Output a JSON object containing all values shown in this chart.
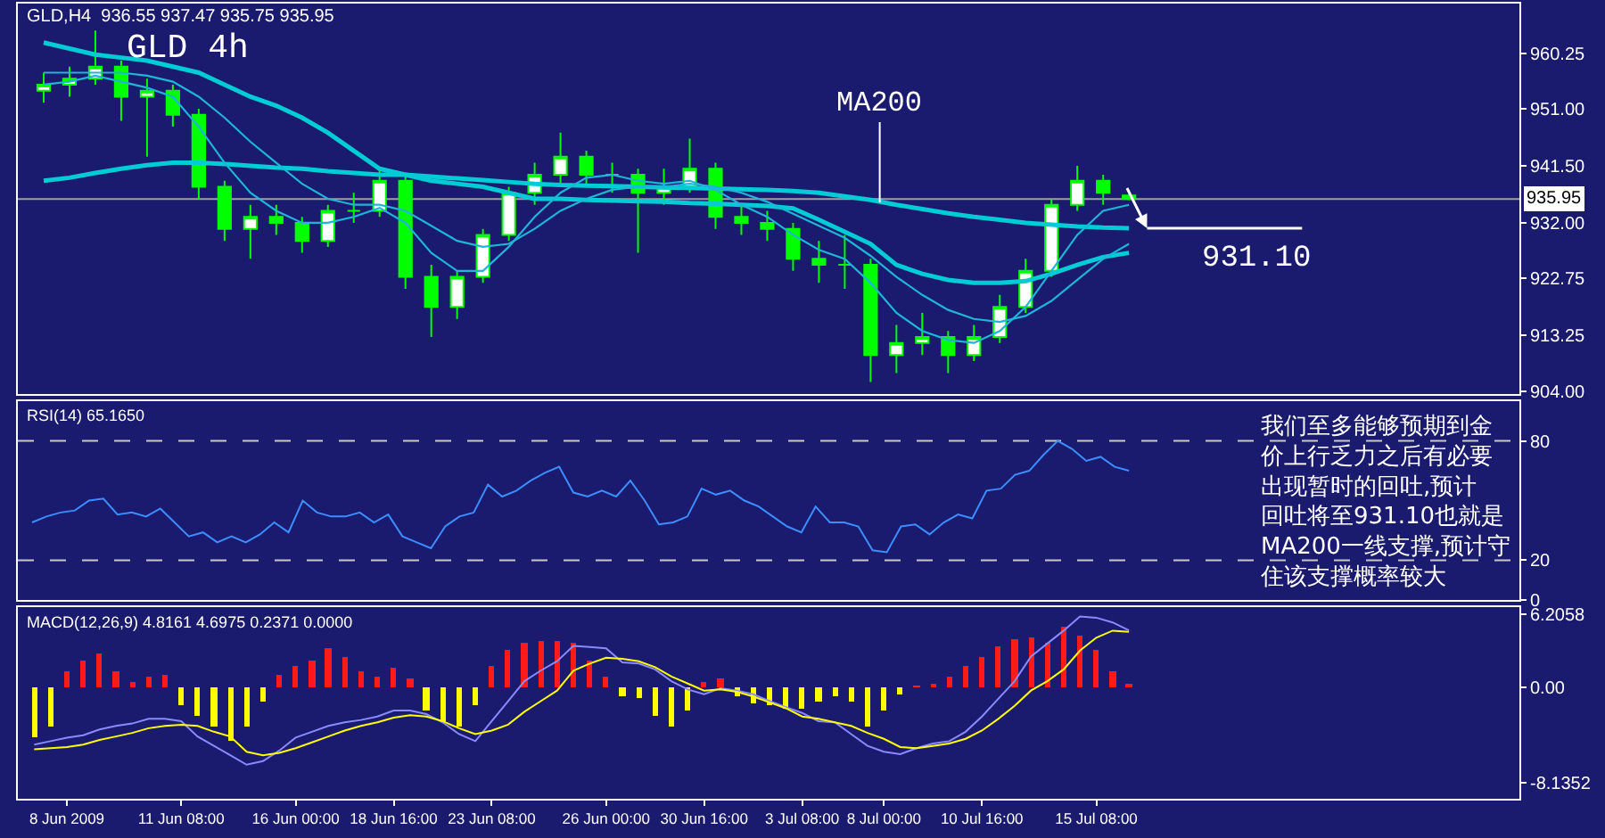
{
  "chart_data": [
    {
      "type": "candlestick",
      "title": "GLD 4h",
      "subtitle": "GLD,H4  936.55 937.47 935.75 935.95",
      "color": "#00ff00",
      "categories": [
        null,
        null,
        null,
        null,
        null,
        null,
        null,
        null,
        null,
        null,
        null,
        null,
        null,
        null,
        null,
        null,
        null,
        null,
        null,
        null,
        null,
        null,
        null,
        null,
        null,
        null,
        null,
        null,
        null,
        null,
        null,
        null,
        null,
        null,
        null,
        null,
        null,
        null,
        null,
        null,
        null,
        null,
        null
      ],
      "ohlc": [
        [
          954,
          957,
          952,
          955
        ],
        [
          955,
          958,
          953,
          956
        ],
        [
          956,
          964,
          955,
          958
        ],
        [
          958,
          959,
          949,
          953
        ],
        [
          953,
          956,
          943,
          954
        ],
        [
          954,
          955,
          948,
          950
        ],
        [
          950,
          951,
          936,
          938
        ],
        [
          938,
          939,
          929,
          931
        ],
        [
          931,
          935,
          926,
          933
        ],
        [
          933,
          935,
          930,
          932
        ],
        [
          932,
          933,
          927,
          929
        ],
        [
          929,
          935,
          928,
          934
        ],
        [
          934,
          937,
          932,
          934
        ],
        [
          934,
          941,
          933,
          939
        ],
        [
          939,
          940,
          921,
          923
        ],
        [
          923,
          925,
          913,
          918
        ],
        [
          918,
          924,
          916,
          923
        ],
        [
          923,
          931,
          922,
          930
        ],
        [
          930,
          938,
          929,
          937
        ],
        [
          937,
          942,
          935,
          940
        ],
        [
          940,
          947,
          938,
          943
        ],
        [
          943,
          944,
          938,
          940
        ],
        [
          940,
          942,
          937,
          940
        ],
        [
          940,
          941,
          927,
          937
        ],
        [
          937,
          941,
          935,
          938
        ],
        [
          938,
          946,
          937,
          941
        ],
        [
          941,
          942,
          931,
          933
        ],
        [
          933,
          935,
          930,
          932
        ],
        [
          932,
          934,
          929,
          931
        ],
        [
          931,
          932,
          924,
          926
        ],
        [
          926,
          929,
          922,
          925
        ],
        [
          925,
          930,
          921,
          925
        ],
        [
          925,
          926,
          905.5,
          910
        ],
        [
          910,
          915,
          907,
          912
        ],
        [
          912,
          917,
          910,
          913
        ],
        [
          913,
          914,
          907,
          910
        ],
        [
          910,
          915,
          909,
          913
        ],
        [
          913,
          920,
          912,
          918
        ],
        [
          918,
          926,
          917,
          924
        ],
        [
          924,
          936,
          923,
          935
        ],
        [
          935,
          941.5,
          934,
          939
        ],
        [
          939,
          940,
          935,
          937
        ],
        [
          936.55,
          937.47,
          935.75,
          935.95
        ]
      ],
      "series": [
        {
          "type": "line",
          "color": "#00ccd6",
          "values": [
            939,
            939.5,
            940.3,
            941,
            941.6,
            942,
            942,
            941.8,
            941.5,
            941.2,
            941,
            940.6,
            940.3,
            940,
            940,
            939.7,
            939.4,
            939.1,
            938.8,
            938.5,
            938.3,
            938.2,
            938.1,
            938,
            937.9,
            937.8,
            937.7,
            937.6,
            937.5,
            937.3,
            937,
            936.4,
            935.8,
            935,
            934.3,
            933.6,
            933,
            932.5,
            932,
            931.7,
            931.4,
            931.2,
            931.1
          ]
        },
        {
          "type": "line",
          "color": "#00ccd6",
          "values": [
            962,
            961,
            960,
            959.5,
            959,
            958,
            957,
            955,
            953,
            951.5,
            949.5,
            947,
            944,
            941,
            940,
            939,
            938.5,
            938,
            937,
            936,
            936,
            935.8,
            935.7,
            935.6,
            935.5,
            935.3,
            935.2,
            935,
            934.8,
            934.4,
            932.5,
            930.5,
            928.5,
            925,
            923.5,
            922.5,
            922,
            922,
            922.3,
            923.5,
            925,
            926.3,
            927
          ]
        },
        {
          "type": "line",
          "color": "#1fb4d8",
          "values": [
            955,
            955.5,
            956.5,
            955.5,
            954.5,
            953,
            948,
            942,
            937,
            934,
            932,
            932,
            933,
            934.5,
            932,
            927,
            924,
            924,
            928,
            933,
            937,
            939.5,
            940,
            939,
            938.5,
            939,
            937.5,
            935,
            933,
            930,
            927.5,
            926,
            922,
            917,
            914,
            912.5,
            912,
            914,
            918,
            924,
            930,
            934,
            935
          ]
        },
        {
          "type": "line",
          "color": "#1fb4d8",
          "values": [
            957,
            957,
            957,
            957,
            956.5,
            955.5,
            953,
            949.5,
            945.5,
            942,
            938.5,
            936,
            935,
            935,
            934,
            931.5,
            929,
            928,
            928.5,
            931,
            934,
            936,
            937.5,
            938,
            938,
            938.5,
            938,
            937,
            935.5,
            933.5,
            931.5,
            929.5,
            926.5,
            923,
            920,
            917.5,
            916,
            915.5,
            916.5,
            919,
            922.5,
            926,
            928.5
          ]
        }
      ],
      "annotations": [
        {
          "text": "MA200",
          "y": 935.4
        }
      ],
      "ref_lines": [
        {
          "axis": "y",
          "value": 935.95,
          "label": "935.95",
          "color": "#a0a0a0"
        },
        {
          "axis": "y",
          "value": 931.1,
          "label": "931.10",
          "color": "#ffffff"
        }
      ],
      "ylim": [
        903.5,
        968.5
      ],
      "yticks": [
        {
          "value": 904,
          "label": "904.00"
        },
        {
          "value": 913.25,
          "label": "913.25"
        },
        {
          "value": 922.75,
          "label": "922.75"
        },
        {
          "value": 932,
          "label": "932.00"
        },
        {
          "value": 941.5,
          "label": "941.50"
        },
        {
          "value": 951,
          "label": "951.00"
        },
        {
          "value": 960.25,
          "label": "960.25"
        }
      ],
      "tick_labels": "y"
    },
    {
      "type": "line",
      "title": "RSI(14) 65.1650",
      "color": "#3b8eff",
      "categories": [
        null,
        null,
        null,
        null,
        null,
        null,
        null,
        null,
        null,
        null,
        null,
        null,
        null,
        null,
        null,
        null,
        null,
        null,
        null,
        null,
        null,
        null,
        null,
        null,
        null,
        null,
        null,
        null,
        null,
        null,
        null,
        null,
        null,
        null,
        null,
        null,
        null,
        null,
        null,
        null,
        null,
        null,
        null,
        null,
        null,
        null,
        null,
        null,
        null,
        null,
        null,
        null,
        null,
        null,
        null,
        null,
        null,
        null,
        null,
        null,
        null,
        null,
        null,
        null,
        null,
        null,
        null,
        null,
        null,
        null,
        null,
        null,
        null,
        null,
        null,
        null,
        null,
        null
      ],
      "values": [
        39,
        42,
        44,
        45,
        50,
        51,
        43,
        44,
        42,
        46,
        39,
        32,
        34,
        29,
        32,
        29,
        33,
        39,
        34,
        50,
        44,
        42,
        42,
        44,
        39,
        43,
        32,
        29,
        26,
        37,
        42,
        44,
        58,
        52,
        55,
        60,
        64,
        67,
        54,
        52,
        55,
        52,
        60,
        50,
        38,
        39,
        42,
        56,
        53,
        55,
        50,
        47,
        42,
        37,
        34,
        47,
        39,
        39,
        37,
        25,
        24,
        37,
        38,
        33,
        39,
        43,
        41,
        55,
        56,
        63,
        65,
        73,
        80,
        76,
        70,
        72,
        67,
        65
      ],
      "ref_lines": [
        {
          "axis": "y",
          "value": 80,
          "color": "#c8c8c8",
          "line_style": "dashed"
        },
        {
          "axis": "y",
          "value": 20,
          "color": "#c8c8c8",
          "line_style": "dashed"
        }
      ],
      "annotations": [
        "我们至多能够预期到金价上行乏力之后有必要出现暂时的回吐,预计回吐将至931.10也就是MA200一线支撑,预计守住该支撑概率较大"
      ],
      "ylim": [
        0,
        100
      ],
      "yticks": [
        0,
        20,
        80
      ],
      "tick_labels": "y"
    },
    {
      "type": "bar",
      "title": "MACD(12,26,9) 4.8161 4.6975 0.2371 0.0000",
      "categories": [
        null,
        null,
        "8 Jun 2009",
        null,
        null,
        null,
        null,
        null,
        null,
        "11 Jun 08:00",
        null,
        null,
        null,
        null,
        null,
        null,
        "16 Jun 00:00",
        null,
        null,
        null,
        null,
        null,
        "18 Jun 16:00",
        null,
        null,
        null,
        null,
        null,
        "23 Jun 08:00",
        null,
        null,
        null,
        null,
        null,
        null,
        "26 Jun 00:00",
        null,
        null,
        null,
        null,
        null,
        "30 Jun 16:00",
        null,
        null,
        null,
        null,
        null,
        "3 Jul 08:00",
        null,
        null,
        null,
        null,
        "8 Jul 00:00",
        null,
        null,
        null,
        null,
        null,
        "10 Jul 16:00",
        null,
        null,
        null,
        null,
        null,
        null,
        "15 Jul 08:00",
        null,
        null
      ],
      "series": [
        {
          "type": "bar",
          "values": [
            -4.2,
            -3.3,
            1.4,
            2.2,
            2.9,
            1.4,
            0.5,
            0.9,
            1.1,
            -1.6,
            -2.5,
            -3.3,
            -4.6,
            -3.3,
            -1.2,
            1.1,
            1.8,
            2.2,
            3.3,
            2.6,
            1.4,
            0.9,
            1.6,
            0.8,
            -2.0,
            -2.9,
            -3.3,
            -1.6,
            1.8,
            3.1,
            3.7,
            3.9,
            3.9,
            3.7,
            2.2,
            0.9,
            -0.8,
            -0.9,
            -2.5,
            -3.3,
            -2.0,
            0.5,
            0.8,
            -0.8,
            -1.4,
            -1.6,
            -1.8,
            -1.8,
            -1.2,
            -0.8,
            -1.2,
            -3.3,
            -2.0,
            -0.6,
            0.1,
            0.3,
            0.9,
            1.8,
            2.6,
            3.5,
            4.1,
            4.2,
            3.7,
            5.2,
            4.3,
            3.1,
            1.4,
            0.2371
          ],
          "colors": [
            "#ffff00",
            "#ffff00",
            "#ff1a1a",
            "#ff1a1a",
            "#ff1a1a",
            "#ff1a1a",
            "#ff1a1a",
            "#ff1a1a",
            "#ff1a1a",
            "#ffff00",
            "#ffff00",
            "#ffff00",
            "#ffff00",
            "#ffff00",
            "#ffff00",
            "#ff1a1a",
            "#ff1a1a",
            "#ff1a1a",
            "#ff1a1a",
            "#ff1a1a",
            "#ff1a1a",
            "#ff1a1a",
            "#ff1a1a",
            "#ff1a1a",
            "#ffff00",
            "#ffff00",
            "#ffff00",
            "#ffff00",
            "#ff1a1a",
            "#ff1a1a",
            "#ff1a1a",
            "#ff1a1a",
            "#ff1a1a",
            "#ff1a1a",
            "#ff1a1a",
            "#ff1a1a",
            "#ffff00",
            "#ffff00",
            "#ffff00",
            "#ffff00",
            "#ffff00",
            "#ff1a1a",
            "#ff1a1a",
            "#ffff00",
            "#ffff00",
            "#ffff00",
            "#ffff00",
            "#ffff00",
            "#ffff00",
            "#ffff00",
            "#ffff00",
            "#ffff00",
            "#ffff00",
            "#ffff00",
            "#ff1a1a",
            "#ff1a1a",
            "#ff1a1a",
            "#ff1a1a",
            "#ff1a1a",
            "#ff1a1a",
            "#ff1a1a",
            "#ff1a1a",
            "#ff1a1a",
            "#ff1a1a",
            "#ff1a1a",
            "#ff1a1a",
            "#ff1a1a",
            "#ff1a1a"
          ]
        },
        {
          "type": "line",
          "color": "#8a8aff",
          "values": [
            -4.9,
            -4.6,
            -4.3,
            -4.1,
            -3.6,
            -3.3,
            -3.1,
            -2.7,
            -2.7,
            -2.9,
            -4.2,
            -5.0,
            -5.8,
            -6.6,
            -6.3,
            -5.4,
            -4.3,
            -3.8,
            -3.3,
            -3.0,
            -2.8,
            -2.5,
            -2.0,
            -2.0,
            -2.3,
            -3.0,
            -4.0,
            -4.6,
            -2.9,
            -1.2,
            0.5,
            1.4,
            2.2,
            3.5,
            3.4,
            3.3,
            2.1,
            2.0,
            1.5,
            0.5,
            -0.2,
            -0.6,
            -0.1,
            -0.3,
            -0.6,
            -1.2,
            -1.7,
            -2.2,
            -2.9,
            -3.0,
            -4.0,
            -5.0,
            -5.5,
            -5.7,
            -5.2,
            -4.8,
            -4.6,
            -3.8,
            -2.5,
            -1.0,
            0.5,
            2.6,
            3.7,
            4.8,
            6.0,
            5.9,
            5.5,
            4.8161
          ]
        },
        {
          "type": "line",
          "color": "#ffff00",
          "values": [
            -5.3,
            -5.2,
            -5.1,
            -4.9,
            -4.5,
            -4.2,
            -3.9,
            -3.5,
            -3.3,
            -3.2,
            -3.3,
            -3.8,
            -4.2,
            -5.5,
            -5.8,
            -5.6,
            -5.2,
            -4.7,
            -4.2,
            -3.7,
            -3.3,
            -3.0,
            -2.6,
            -2.4,
            -2.5,
            -2.9,
            -3.5,
            -4.0,
            -3.7,
            -3.2,
            -2.1,
            -1.2,
            -0.3,
            1.4,
            2.0,
            2.5,
            2.4,
            2.2,
            1.7,
            0.9,
            0.3,
            -0.3,
            -0.2,
            -0.4,
            -0.8,
            -1.3,
            -1.8,
            -2.5,
            -2.7,
            -3.0,
            -3.3,
            -3.9,
            -4.4,
            -5.1,
            -5.2,
            -5.0,
            -4.8,
            -4.4,
            -3.7,
            -2.7,
            -1.6,
            -0.3,
            0.5,
            1.5,
            3.1,
            4.2,
            4.8,
            4.6975
          ]
        }
      ],
      "ylim": [
        -9.5,
        6.8
      ],
      "yticks": [
        {
          "value": 6.2058,
          "label": "6.2058"
        },
        {
          "value": 0,
          "label": "0.00"
        },
        {
          "value": -8.1352,
          "label": "-8.1352"
        }
      ]
    }
  ]
}
